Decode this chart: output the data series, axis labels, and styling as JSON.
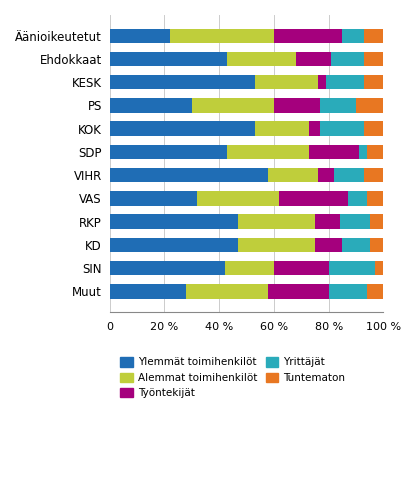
{
  "categories": [
    "Äänioikeutetut",
    "Ehdokkaat",
    "KESK",
    "PS",
    "KOK",
    "SDP",
    "VIHR",
    "VAS",
    "RKP",
    "KD",
    "SIN",
    "Muut"
  ],
  "series": {
    "Ylemmät toimihenkilöt": [
      22,
      43,
      53,
      30,
      53,
      43,
      58,
      32,
      47,
      47,
      42,
      28
    ],
    "Alemmat toimihenkilöt": [
      38,
      25,
      23,
      30,
      20,
      30,
      18,
      30,
      28,
      28,
      18,
      30
    ],
    "Työntekijät": [
      25,
      13,
      3,
      17,
      4,
      18,
      6,
      25,
      9,
      10,
      20,
      22
    ],
    "Yrittäjät": [
      8,
      12,
      14,
      13,
      16,
      3,
      11,
      7,
      11,
      10,
      17,
      14
    ],
    "Tuntematon": [
      7,
      7,
      7,
      10,
      7,
      6,
      7,
      6,
      5,
      5,
      3,
      6
    ]
  },
  "colors": {
    "Ylemmät toimihenkilöt": "#1F6DB5",
    "Alemmat toimihenkilöt": "#BFCE3B",
    "Työntekijät": "#A5007D",
    "Yrittäjät": "#2AABBA",
    "Tuntematon": "#E87722"
  },
  "legend_order": [
    "Ylemmät toimihenkilöt",
    "Alemmat toimihenkilöt",
    "Työntekijät",
    "Yrittäjät",
    "Tuntematon"
  ],
  "xlim": [
    0,
    100
  ],
  "xticks": [
    0,
    20,
    40,
    60,
    80,
    100
  ],
  "xtick_labels": [
    "0",
    "20 %",
    "40 %",
    "60 %",
    "80 %",
    "100 %"
  ],
  "background_color": "#ffffff",
  "bar_height": 0.62
}
